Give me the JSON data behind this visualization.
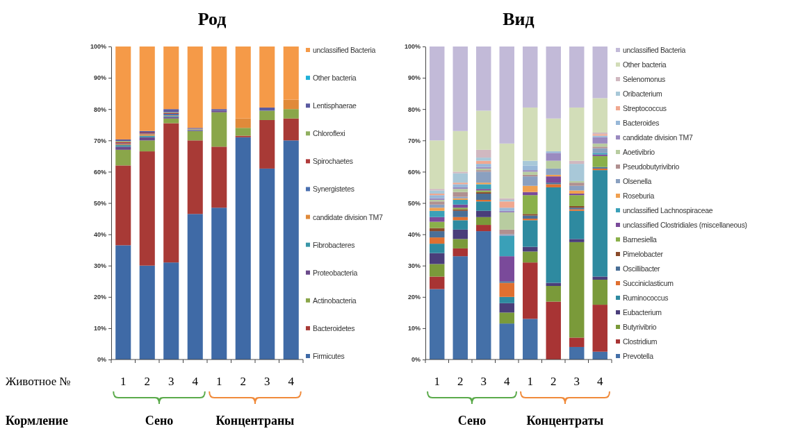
{
  "chart_data": [
    {
      "type": "bar",
      "title": "Род",
      "stacked": true,
      "legend": "right",
      "grid": false,
      "categories": [
        "1",
        "2",
        "3",
        "4",
        "1",
        "2",
        "3",
        "4"
      ],
      "ylim": [
        0,
        100
      ],
      "yticks": [
        {
          "value": 0,
          "label": "0%"
        },
        {
          "value": 10,
          "label": "10%"
        },
        {
          "value": 20,
          "label": "20%"
        },
        {
          "value": 30,
          "label": "30%"
        },
        {
          "value": 40,
          "label": "40%"
        },
        {
          "value": 50,
          "label": "50%"
        },
        {
          "value": 60,
          "label": "60%"
        },
        {
          "value": 70,
          "label": "70%"
        },
        {
          "value": 80,
          "label": "80%"
        },
        {
          "value": 90,
          "label": "90%"
        },
        {
          "value": 100,
          "label": "100%"
        }
      ],
      "annotations": [
        "Животное №",
        "Кормление",
        "Сено",
        "Концентраны"
      ],
      "series": [
        {
          "name": "Firmicutes",
          "color": "#3f6aa6",
          "values": [
            36.5,
            30,
            31,
            46.5,
            48.5,
            71,
            61,
            70
          ]
        },
        {
          "name": "Bacteroidetes",
          "color": "#a83a36",
          "values": [
            25.5,
            36.5,
            44.5,
            23.5,
            19.5,
            0.5,
            15.5,
            7
          ]
        },
        {
          "name": "Actinobacteria",
          "color": "#8aa64a",
          "values": [
            5,
            3.5,
            1.5,
            3,
            11,
            2.5,
            3,
            3
          ]
        },
        {
          "name": "Proteobacteria",
          "color": "#6a4a8a",
          "values": [
            1,
            1,
            0.5,
            0.3,
            0.5,
            0,
            0,
            0
          ]
        },
        {
          "name": "Fibrobacteres",
          "color": "#3a96a8",
          "values": [
            0.5,
            0.5,
            0.3,
            0.2,
            0,
            0,
            0,
            0
          ]
        },
        {
          "name": "candidate division TM7",
          "color": "#e08a3a",
          "values": [
            0.3,
            0.5,
            0.2,
            0.2,
            0,
            3,
            0,
            3
          ]
        },
        {
          "name": "Synergistetes",
          "color": "#4a70b0",
          "values": [
            0.2,
            0.2,
            0.5,
            0,
            0,
            0,
            0,
            0
          ]
        },
        {
          "name": "Spirochaetes",
          "color": "#b03a3a",
          "values": [
            0.5,
            0.3,
            0.3,
            0,
            0,
            0,
            0,
            0
          ]
        },
        {
          "name": "Chloroflexi",
          "color": "#90b060",
          "values": [
            0.3,
            0,
            0.2,
            0,
            0,
            0,
            0,
            0
          ]
        },
        {
          "name": "Lentisphaerae",
          "color": "#5a5aa0",
          "values": [
            0.5,
            0.5,
            1,
            0.3,
            0.5,
            0,
            1,
            0
          ]
        },
        {
          "name": "Other bacteria",
          "color": "#20b0d8",
          "values": [
            0,
            0,
            0,
            0,
            0,
            0,
            0,
            0
          ]
        },
        {
          "name": "unclassified Bacteria",
          "color": "#f59a48",
          "values": [
            29.7,
            27,
            20,
            26,
            20,
            23,
            19.5,
            17
          ]
        }
      ]
    },
    {
      "type": "bar",
      "title": "Вид",
      "stacked": true,
      "legend": "right",
      "grid": false,
      "categories": [
        "1",
        "2",
        "3",
        "4",
        "1",
        "2",
        "3",
        "4"
      ],
      "ylim": [
        0,
        100
      ],
      "yticks": [
        {
          "value": 0,
          "label": "0%"
        },
        {
          "value": 10,
          "label": "10%"
        },
        {
          "value": 20,
          "label": "20%"
        },
        {
          "value": 30,
          "label": "30%"
        },
        {
          "value": 40,
          "label": "40%"
        },
        {
          "value": 50,
          "label": "50%"
        },
        {
          "value": 60,
          "label": "60%"
        },
        {
          "value": 70,
          "label": "70%"
        },
        {
          "value": 80,
          "label": "80%"
        },
        {
          "value": 90,
          "label": "90%"
        },
        {
          "value": 100,
          "label": "100%"
        }
      ],
      "annotations": [
        "Сено",
        "Концентраты"
      ],
      "series": [
        {
          "name": "Prevotella",
          "color": "#4470a8",
          "values": [
            22.5,
            33,
            41,
            11.5,
            13,
            0,
            4,
            2.5
          ]
        },
        {
          "name": "Clostridium",
          "color": "#a83434",
          "values": [
            4,
            2.5,
            2,
            0,
            18,
            18.5,
            3,
            15
          ]
        },
        {
          "name": "Butyrivibrio",
          "color": "#7a9a3a",
          "values": [
            4,
            3,
            2.5,
            3.5,
            3.5,
            5,
            30.5,
            8
          ]
        },
        {
          "name": "Eubacterium",
          "color": "#4a3e7a",
          "values": [
            3.5,
            3,
            2,
            3,
            1.5,
            1,
            1,
            1
          ]
        },
        {
          "name": "Ruminococcus",
          "color": "#2e8aa0",
          "values": [
            3,
            3,
            3,
            2,
            8.5,
            30.5,
            9,
            34
          ]
        },
        {
          "name": "Succiniclasticum",
          "color": "#e07030",
          "values": [
            2,
            1,
            0.5,
            4.5,
            0.5,
            1,
            0.5,
            0.5
          ]
        },
        {
          "name": "Oscillibacter",
          "color": "#4a6f96",
          "values": [
            2,
            2,
            2,
            0.5,
            1,
            0.5,
            0.5,
            0.5
          ]
        },
        {
          "name": "Pimelobacter",
          "color": "#8a4a2a",
          "values": [
            1,
            0.5,
            0.5,
            0,
            0.5,
            0,
            0.5,
            0
          ]
        },
        {
          "name": "Barnesiella",
          "color": "#8ab04a",
          "values": [
            2,
            0.5,
            0.5,
            0,
            6,
            0,
            3.5,
            3.5
          ]
        },
        {
          "name": "unclassified Clostridiales (miscellaneous)",
          "color": "#7a4a9a",
          "values": [
            1.5,
            1,
            0.5,
            8,
            1,
            2,
            0.5,
            0.5
          ]
        },
        {
          "name": "unclassified Lachnospiraceae",
          "color": "#3aa0b8",
          "values": [
            2,
            1.5,
            1.5,
            6.5,
            0,
            0,
            0,
            0.5
          ]
        },
        {
          "name": "Roseburia",
          "color": "#f0a050",
          "values": [
            1,
            0.5,
            0.5,
            0,
            2,
            0.5,
            1,
            0
          ]
        },
        {
          "name": "Olsenella",
          "color": "#8aa0c0",
          "values": [
            1,
            0.5,
            3.5,
            0.5,
            3,
            2,
            1.5,
            1.5
          ]
        },
        {
          "name": "Pseudobutyrivibrio",
          "color": "#b09090",
          "values": [
            1,
            1.5,
            0.5,
            1.5,
            0.5,
            0,
            1,
            0.5
          ]
        },
        {
          "name": "Aoetivibrio",
          "color": "#b8cca0",
          "values": [
            0.5,
            1,
            0.5,
            5.5,
            1,
            2.5,
            0.5,
            1
          ]
        },
        {
          "name": "candidate division TM7",
          "color": "#9a8ac0",
          "values": [
            0.5,
            0.5,
            0.5,
            0.5,
            0.5,
            2.5,
            0,
            2
          ]
        },
        {
          "name": "Bacteroides",
          "color": "#98b8d8",
          "values": [
            1,
            1,
            1,
            1,
            1.5,
            0.5,
            0,
            0.5
          ]
        },
        {
          "name": "Streptococcus",
          "color": "#f0a890",
          "values": [
            0.5,
            0.5,
            1,
            2,
            0,
            0,
            0,
            0.5
          ]
        },
        {
          "name": "Oribacterium",
          "color": "#a8c8d8",
          "values": [
            1,
            3,
            1,
            0.5,
            1.5,
            0,
            5.5,
            0
          ]
        },
        {
          "name": "Selenomonus",
          "color": "#d0b8c0",
          "values": [
            0.5,
            0.5,
            2.5,
            0.5,
            0,
            0,
            1,
            0.5
          ]
        },
        {
          "name": "Other bacteria",
          "color": "#d2ddb8",
          "values": [
            15.5,
            13,
            12.5,
            17.5,
            17,
            10.5,
            17,
            11
          ]
        },
        {
          "name": "unclassified Bacteria",
          "color": "#c2bad8",
          "values": [
            30,
            27,
            20.5,
            31,
            19.5,
            23,
            19.5,
            16.5
          ]
        }
      ]
    }
  ]
}
